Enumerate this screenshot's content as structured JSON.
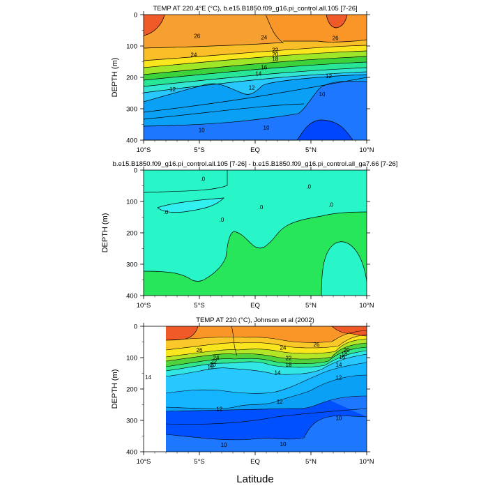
{
  "chart_data": [
    {
      "type": "heatmap",
      "title": "TEMP AT 220.4°E (°C), b.e15.B1850.f09_g16.pi_control.all.105 [7-26]",
      "xlabel": "",
      "ylabel": "DEPTH (m)",
      "xlim": [
        -10,
        10
      ],
      "ylim": [
        0,
        400
      ],
      "y_inverted": true,
      "xticks": [
        {
          "v": -10,
          "label": "10°S"
        },
        {
          "v": -5,
          "label": "5°S"
        },
        {
          "v": 0,
          "label": "EQ"
        },
        {
          "v": 5,
          "label": "5°N"
        },
        {
          "v": 10,
          "label": "10°N"
        }
      ],
      "yticks": [
        {
          "v": 0,
          "label": "0"
        },
        {
          "v": 100,
          "label": "100"
        },
        {
          "v": 200,
          "label": "200"
        },
        {
          "v": 300,
          "label": "300"
        },
        {
          "v": 400,
          "label": "400"
        }
      ],
      "contour_labels": [
        {
          "x": -5.2,
          "y": 68,
          "label": "26"
        },
        {
          "x": 0.8,
          "y": 72,
          "label": "24"
        },
        {
          "x": 7.2,
          "y": 74,
          "label": "26"
        },
        {
          "x": -5.5,
          "y": 128,
          "label": "24"
        },
        {
          "x": 1.8,
          "y": 112,
          "label": "22"
        },
        {
          "x": 1.8,
          "y": 127,
          "label": "20"
        },
        {
          "x": 1.8,
          "y": 141,
          "label": "18"
        },
        {
          "x": 0.8,
          "y": 168,
          "label": "16"
        },
        {
          "x": 0.3,
          "y": 188,
          "label": "14"
        },
        {
          "x": 6.6,
          "y": 195,
          "label": "12"
        },
        {
          "x": -0.3,
          "y": 232,
          "label": "12"
        },
        {
          "x": -7.4,
          "y": 238,
          "label": "12"
        },
        {
          "x": 6.0,
          "y": 253,
          "label": "10"
        },
        {
          "x": -4.8,
          "y": 368,
          "label": "10"
        },
        {
          "x": 1.0,
          "y": 360,
          "label": "10"
        }
      ]
    },
    {
      "type": "heatmap",
      "title": "b.e15.B1850.f09_g16.pi_control.all.105 [7-26] - b.e15.B1850.f09_g16.pi_control.all_ga7.66 [7-26]",
      "xlabel": "",
      "ylabel": "DEPTH (m)",
      "xlim": [
        -10,
        10
      ],
      "ylim": [
        0,
        400
      ],
      "y_inverted": true,
      "xticks": [
        {
          "v": -10,
          "label": "10°S"
        },
        {
          "v": -5,
          "label": "5°S"
        },
        {
          "v": 0,
          "label": "EQ"
        },
        {
          "v": 5,
          "label": "5°N"
        },
        {
          "v": 10,
          "label": "10°N"
        }
      ],
      "yticks": [
        {
          "v": 0,
          "label": "0"
        },
        {
          "v": 100,
          "label": "100"
        },
        {
          "v": 200,
          "label": "200"
        },
        {
          "v": 300,
          "label": "300"
        },
        {
          "v": 400,
          "label": "400"
        }
      ],
      "contour_labels": [
        {
          "x": -4.7,
          "y": 28,
          "label": ".0"
        },
        {
          "x": 4.8,
          "y": 52,
          "label": ".0"
        },
        {
          "x": 0.5,
          "y": 118,
          "label": ".0"
        },
        {
          "x": 6.8,
          "y": 110,
          "label": ".0"
        },
        {
          "x": -3.0,
          "y": 158,
          "label": ".0"
        },
        {
          "x": -8.0,
          "y": 133,
          "label": ".0"
        }
      ]
    },
    {
      "type": "heatmap",
      "title": "TEMP AT 220 (°C), Johnson et al (2002)",
      "xlabel": "Latitude",
      "ylabel": "DEPTH (m)",
      "xlim": [
        -10,
        10
      ],
      "ylim": [
        0,
        400
      ],
      "y_inverted": true,
      "xticks": [
        {
          "v": -10,
          "label": "10°S"
        },
        {
          "v": -5,
          "label": "5°S"
        },
        {
          "v": 0,
          "label": "EQ"
        },
        {
          "v": 5,
          "label": "5°N"
        },
        {
          "v": 10,
          "label": "10°N"
        }
      ],
      "yticks": [
        {
          "v": 0,
          "label": "0"
        },
        {
          "v": 100,
          "label": "100"
        },
        {
          "v": 200,
          "label": "200"
        },
        {
          "v": 300,
          "label": "300"
        },
        {
          "v": 400,
          "label": "400"
        }
      ],
      "contour_labels": [
        {
          "x": -5.0,
          "y": 75,
          "label": "26"
        },
        {
          "x": -3.5,
          "y": 100,
          "label": "24"
        },
        {
          "x": -3.7,
          "y": 112,
          "label": "22"
        },
        {
          "x": -3.8,
          "y": 122,
          "label": "20"
        },
        {
          "x": -4.0,
          "y": 130,
          "label": "18"
        },
        {
          "x": 2.5,
          "y": 68,
          "label": "24"
        },
        {
          "x": 5.5,
          "y": 58,
          "label": "26"
        },
        {
          "x": 3.0,
          "y": 101,
          "label": "22"
        },
        {
          "x": 3.0,
          "y": 122,
          "label": "18"
        },
        {
          "x": 8.2,
          "y": 75,
          "label": "20"
        },
        {
          "x": 8.0,
          "y": 88,
          "label": "18"
        },
        {
          "x": 7.8,
          "y": 98,
          "label": "16"
        },
        {
          "x": 7.5,
          "y": 122,
          "label": "14"
        },
        {
          "x": 2.0,
          "y": 148,
          "label": "14"
        },
        {
          "x": -9.6,
          "y": 162,
          "label": "14"
        },
        {
          "x": 7.5,
          "y": 163,
          "label": "12"
        },
        {
          "x": 2.2,
          "y": 240,
          "label": "12"
        },
        {
          "x": -3.2,
          "y": 263,
          "label": "12"
        },
        {
          "x": 7.5,
          "y": 292,
          "label": "10"
        },
        {
          "x": -2.8,
          "y": 378,
          "label": "10"
        },
        {
          "x": 2.5,
          "y": 375,
          "label": "10"
        }
      ]
    }
  ],
  "figure": {
    "xlabel_bottom": "Latitude"
  }
}
